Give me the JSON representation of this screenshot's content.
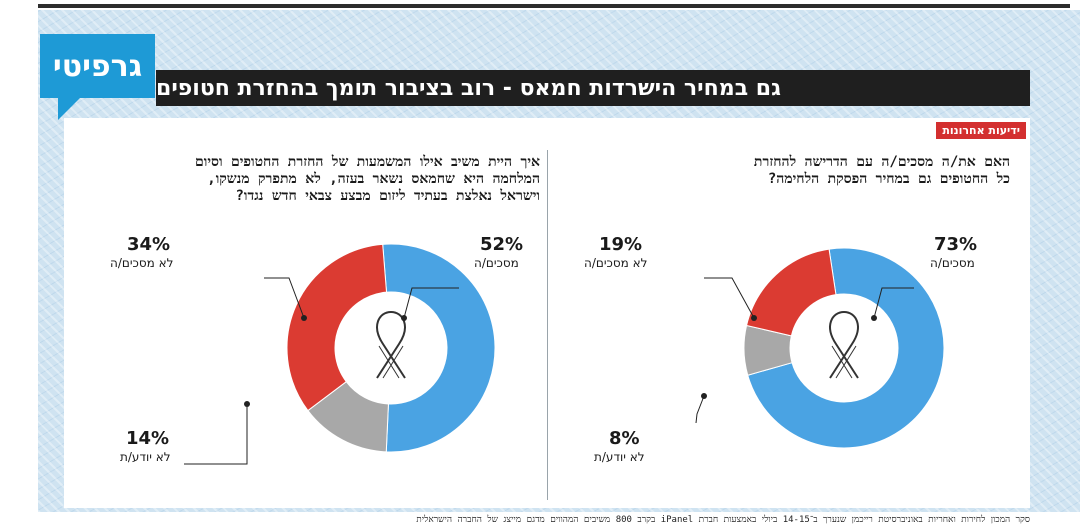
{
  "header": {
    "logo_text": "גרפיטי",
    "title": "גם במחיר הישרדות חמאס - רוב בציבור תומך בהחזרת חטופים",
    "source_badge": "ידיעות אחרונות"
  },
  "colors": {
    "agree": "#4aa3e3",
    "disagree": "#db3b32",
    "unknown": "#a8a8a8",
    "logo": "#1e9ad6"
  },
  "icons": {
    "center": "ribbon-icon"
  },
  "chart_data": [
    {
      "type": "pie",
      "title": "האם את/ה מסכים/ה עם הדרישה להחזרת כל החטופים גם במחיר הפסקת הלחימה?",
      "categories": [
        "מסכים/ה",
        "לא יודע/ת",
        "לא מסכים/ה"
      ],
      "values": [
        73,
        8,
        19
      ],
      "labels_pct": [
        "73%",
        "8%",
        "19%"
      ]
    },
    {
      "type": "pie",
      "title": "איך היית משיב אילו המשמעות של החזרת החטופים וסיום המלחמה היא שחמאס נשאר בעזה, לא מתפרק מנשקו, וישראל נאלצת בעתיד ליזום מבצע צבאי חדש נגדו?",
      "categories": [
        "מסכים/ה",
        "לא יודע/ת",
        "לא מסכים/ה"
      ],
      "values": [
        52,
        14,
        34
      ],
      "labels_pct": [
        "52%",
        "14%",
        "34%"
      ]
    }
  ],
  "questions": {
    "right_line1": "האם את/ה מסכים/ה עם הדרישה להחזרת",
    "right_line2": "כל החטופים גם במחיר הפסקת הלחימה?",
    "left_line1": "איך היית משיב אילו המשמעות של החזרת החטופים וסיום",
    "left_line2": "המלחמה היא שחמאס נשאר בעזה, לא מתפרק מנשקו,",
    "left_line3": "וישראל נאלצת בעתיד ליזום מבצע צבאי חדש נגדו?"
  },
  "footer": {
    "text": "סקר המכון לחירות ואחריות באוניברסיטת רייכמן שנערך ב־14-15 ביולי באמצעות חברת iPanel בקרב 800 משיבים המהווים מדגם מייצג של החברה הישראלית"
  }
}
